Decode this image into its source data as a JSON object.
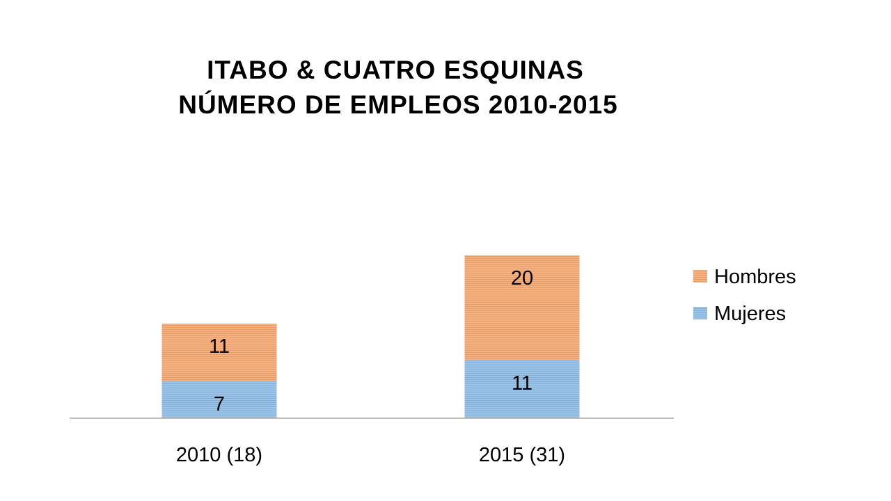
{
  "chart_data": {
    "type": "bar",
    "stacked": true,
    "title": [
      "ITABO & CUATRO ESQUINAS",
      "NÚMERO DE EMPLEOS 2010-2015"
    ],
    "categories": [
      "2010 (18)",
      "2015 (31)"
    ],
    "series": [
      {
        "name": "Mujeres",
        "values": [
          7,
          11
        ],
        "color": "#9DC3E6"
      },
      {
        "name": "Hombres",
        "values": [
          11,
          20
        ],
        "color": "#F4B183"
      }
    ],
    "legend_order": [
      "Hombres",
      "Mujeres"
    ],
    "legend_position": "right",
    "ylim": [
      0,
      35
    ],
    "grid": false,
    "axis_color": "#BFBFBF"
  }
}
